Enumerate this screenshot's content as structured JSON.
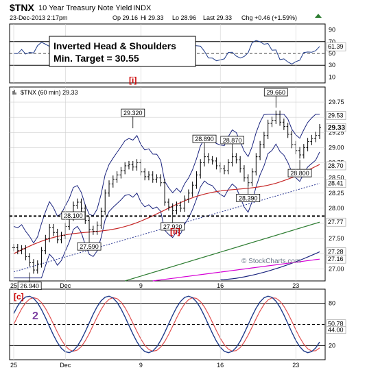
{
  "header": {
    "symbol": "$TNX",
    "name": "10 Year Treasury Note Yield",
    "exchange": "INDX",
    "datetime": "23-Dec-2013 2:17pm",
    "op": "Op 29.16",
    "hi": "Hi 29.33",
    "lo": "Lo 28.96",
    "last": "Last 29.33",
    "chg": "Chg +0.46 (+1.59%)",
    "watermark": "© StockCharts.com"
  },
  "annotations": {
    "box_line1": "Inverted Head & Shoulders",
    "box_line2": "Min. Target = 30.55",
    "wave_i": "[i]",
    "wave_ii": "[ii]",
    "wave_c": "[c]",
    "wave_2": "2"
  },
  "x_labels": [
    "25",
    "Dec",
    "9",
    "16",
    "23"
  ],
  "rsi_panel": {
    "y_ticks": [
      "90",
      "70",
      "50",
      "30",
      "10"
    ],
    "last_value": "61.39",
    "levels": [
      70,
      50,
      30
    ]
  },
  "price_panel": {
    "label": "$TNX (60 min) 29.33",
    "y_ticks": [
      "29.75",
      "29.50",
      "29.25",
      "29.00",
      "28.75",
      "28.50",
      "28.25",
      "28.00",
      "27.75",
      "27.50",
      "27.25",
      "27.00"
    ],
    "ylim": [
      26.8,
      30.0
    ],
    "neckline": 27.87,
    "callouts": [
      {
        "text": "26.940",
        "x": 4,
        "price": 26.94
      },
      {
        "text": "28.100",
        "x": 15,
        "price": 28.1
      },
      {
        "text": "27.590",
        "x": 19,
        "price": 27.59
      },
      {
        "text": "29.320",
        "x": 30,
        "price": 29.32
      },
      {
        "text": "27.920",
        "x": 40,
        "price": 27.92
      },
      {
        "text": "28.890",
        "x": 48,
        "price": 28.89
      },
      {
        "text": "28.870",
        "x": 55,
        "price": 28.87
      },
      {
        "text": "28.390",
        "x": 59,
        "price": 28.39
      },
      {
        "text": "29.660",
        "x": 66,
        "price": 29.66
      },
      {
        "text": "28.800",
        "x": 72,
        "price": 28.8
      }
    ],
    "right_labels": [
      {
        "text": "29.53",
        "price": 29.53,
        "bg": "#ffffff",
        "fg": "#000000"
      },
      {
        "text": "29.33",
        "price": 29.33,
        "bg": "#ffffff",
        "fg": "#000000",
        "bold": true
      },
      {
        "text": "28.70",
        "price": 28.7,
        "bg": "#ffffff",
        "fg": "#000000"
      },
      {
        "text": "28.41",
        "price": 28.41,
        "bg": "#ffffff",
        "fg": "#000000"
      },
      {
        "text": "27.77",
        "price": 27.77,
        "bg": "#ffffff",
        "fg": "#000000"
      },
      {
        "text": "27.28",
        "price": 27.28,
        "bg": "#ffffff",
        "fg": "#000000"
      },
      {
        "text": "27.16",
        "price": 27.16,
        "bg": "#ffffff",
        "fg": "#000000"
      }
    ]
  },
  "stoch_panel": {
    "y_ticks": [
      "80",
      "50",
      "20"
    ],
    "last_values": [
      "50.78",
      "44.00"
    ],
    "levels": [
      80,
      50,
      20
    ]
  },
  "colors": {
    "price": "#000000",
    "upper_band": "#1a237e",
    "ma_red": "#c62828",
    "ma_blue_dotted": "#283593",
    "ma_green": "#2e7d32",
    "ma_navy": "#1a237e",
    "ma_magenta": "#d500d5",
    "stoch_fast": "#1f3b8a",
    "stoch_slow": "#e05050",
    "rsi": "#1f3b8a",
    "wave": "#cc0000",
    "wave_purple": "#7b3fa0"
  },
  "chart_data": {
    "type": "line",
    "timeframe": "60 min",
    "x": [
      0,
      1,
      2,
      3,
      4,
      5,
      6,
      7,
      8,
      9,
      10,
      11,
      12,
      13,
      14,
      15,
      16,
      17,
      18,
      19,
      20,
      21,
      22,
      23,
      24,
      25,
      26,
      27,
      28,
      29,
      30,
      31,
      32,
      33,
      34,
      35,
      36,
      37,
      38,
      39,
      40,
      41,
      42,
      43,
      44,
      45,
      46,
      47,
      48,
      49,
      50,
      51,
      52,
      53,
      54,
      55,
      56,
      57,
      58,
      59,
      60,
      61,
      62,
      63,
      64,
      65,
      66,
      67,
      68,
      69,
      70,
      71,
      72,
      73,
      74,
      75,
      76,
      77
    ],
    "series": [
      {
        "name": "$TNX",
        "values": [
          27.35,
          27.3,
          27.33,
          27.2,
          27.1,
          26.98,
          27.08,
          27.3,
          27.5,
          27.68,
          27.6,
          27.48,
          27.55,
          27.7,
          27.85,
          28.05,
          28.1,
          28.0,
          27.8,
          27.65,
          27.62,
          27.72,
          27.95,
          28.25,
          28.4,
          28.48,
          28.55,
          28.62,
          28.7,
          28.72,
          28.68,
          28.75,
          28.6,
          28.52,
          28.55,
          28.48,
          28.5,
          28.42,
          28.1,
          28.02,
          27.96,
          28.05,
          28.0,
          28.15,
          28.25,
          28.38,
          28.55,
          28.75,
          28.85,
          28.8,
          28.78,
          28.7,
          28.65,
          28.62,
          28.75,
          28.85,
          28.8,
          28.65,
          28.5,
          28.42,
          28.6,
          28.85,
          29.05,
          29.2,
          29.4,
          29.45,
          29.55,
          29.42,
          29.35,
          29.22,
          29.05,
          28.95,
          28.88,
          29.0,
          29.1,
          29.15,
          29.2,
          29.33
        ]
      }
    ],
    "ylim": [
      26.8,
      30.0
    ]
  }
}
